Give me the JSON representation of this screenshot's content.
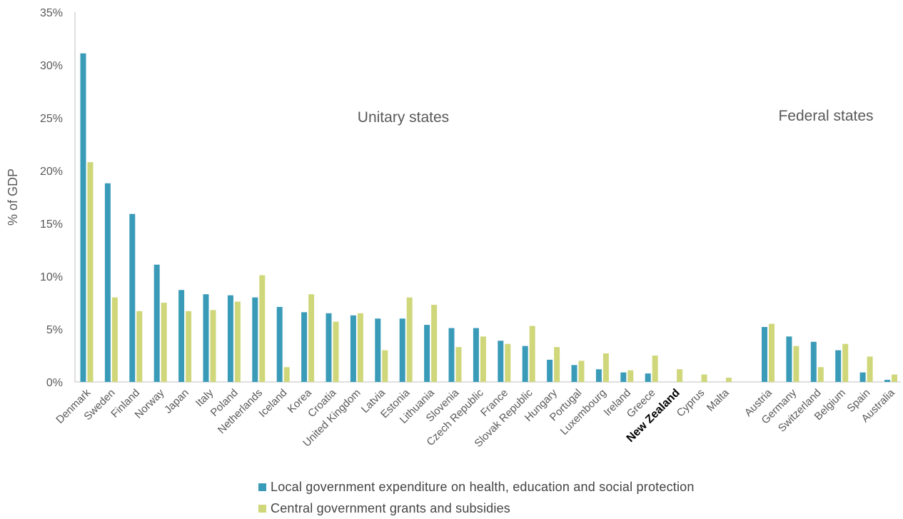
{
  "chart_data": {
    "type": "bar",
    "ylabel": "% of GDP",
    "ylim": [
      0,
      35
    ],
    "yticks": [
      "0%",
      "5%",
      "10%",
      "15%",
      "20%",
      "25%",
      "30%",
      "35%"
    ],
    "grid": false,
    "legend_position": "bottom",
    "colors": {
      "local": "#3a9bb8",
      "central": "#cfd77a",
      "axis": "#bfbfbf",
      "text": "#595959",
      "highlight": "#000000"
    },
    "highlight_category": "New Zealand",
    "groups": [
      {
        "label": "Unitary states",
        "categories": [
          "Denmark",
          "Sweden",
          "Finland",
          "Norway",
          "Japan",
          "Italy",
          "Poland",
          "Netherlands",
          "Iceland",
          "Korea",
          "Croatia",
          "United Kingdom",
          "Latvia",
          "Estonia",
          "Lithuania",
          "Slovenia",
          "Czech Republic",
          "France",
          "Slovak Republic",
          "Hungary",
          "Portugal",
          "Luxembourg",
          "Ireland",
          "Greece",
          "New Zealand",
          "Cyprus",
          "Malta"
        ],
        "local": [
          31.1,
          18.8,
          15.9,
          11.1,
          8.7,
          8.3,
          8.2,
          8.0,
          7.1,
          6.6,
          6.5,
          6.3,
          6.0,
          6.0,
          5.4,
          5.1,
          5.1,
          3.9,
          3.4,
          2.1,
          1.6,
          1.2,
          0.9,
          0.8,
          0.0,
          0.0,
          0.0
        ],
        "central": [
          20.8,
          8.0,
          6.7,
          7.5,
          6.7,
          6.8,
          7.6,
          10.1,
          1.4,
          8.3,
          5.7,
          6.5,
          3.0,
          8.0,
          7.3,
          3.3,
          4.3,
          3.6,
          5.3,
          3.3,
          2.0,
          2.7,
          1.1,
          2.5,
          1.2,
          0.7,
          0.4
        ]
      },
      {
        "label": "Federal states",
        "categories": [
          "Austria",
          "Germany",
          "Switzerland",
          "Belgium",
          "Spain",
          "Australia"
        ],
        "local": [
          5.2,
          4.3,
          3.8,
          3.0,
          0.9,
          0.2
        ],
        "central": [
          5.5,
          3.4,
          1.4,
          3.6,
          2.4,
          0.7
        ]
      }
    ],
    "series": [
      {
        "name": "Local government expenditure on health, education and social protection",
        "key": "local"
      },
      {
        "name": "Central government grants and subsidies",
        "key": "central"
      }
    ]
  }
}
